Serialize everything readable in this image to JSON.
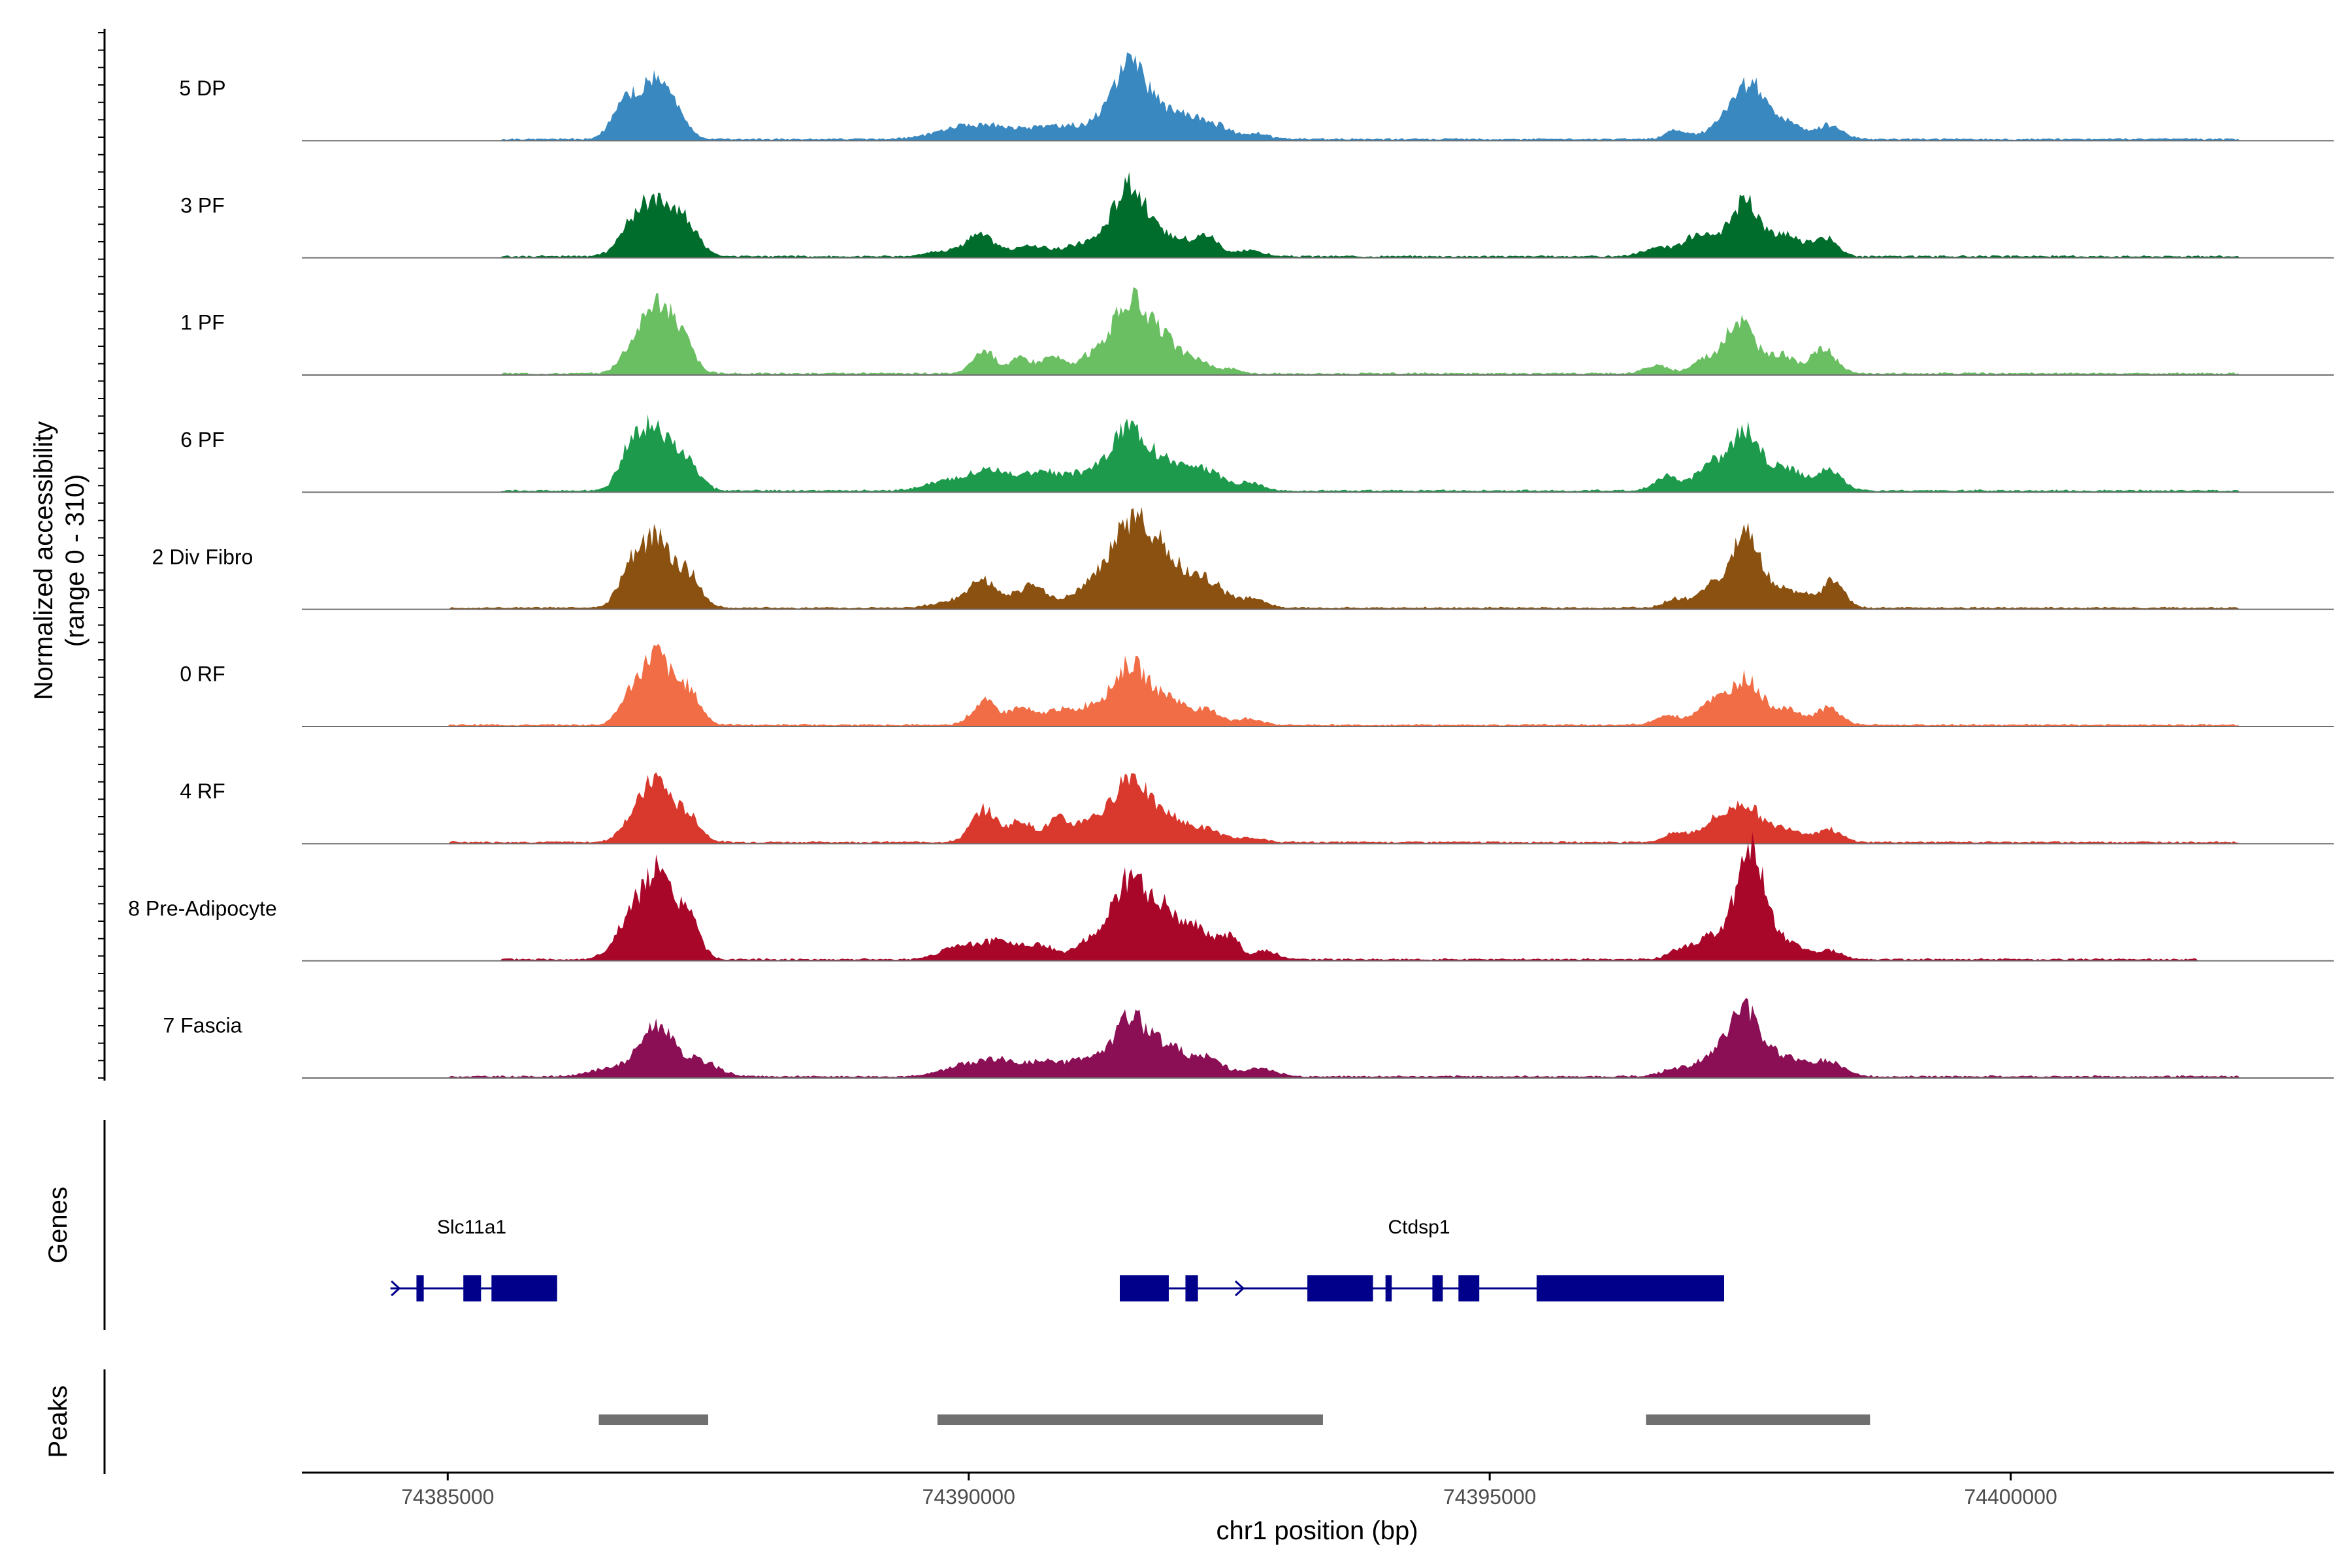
{
  "chart_data": {
    "type": "area",
    "title": "",
    "ylabel_line1": "Normalized accessibility",
    "ylabel_line2": "(range 0 - 310)",
    "y_range": [
      0,
      310
    ],
    "xlabel": "chr1 position (bp)",
    "xlim": [
      74383600,
      74403100
    ],
    "x_ticks": [
      {
        "value": 74385000,
        "label": "74385000"
      },
      {
        "value": 74390000,
        "label": "74390000"
      },
      {
        "value": 74395000,
        "label": "74395000"
      },
      {
        "value": 74400000,
        "label": "74400000"
      }
    ],
    "tracks": [
      {
        "name": "5 DP",
        "color": "#3a88c0",
        "peaks": [
          [
            74386700,
            0.45,
            120
          ],
          [
            74386950,
            0.6,
            120
          ],
          [
            74387150,
            0.45,
            120
          ],
          [
            74389900,
            0.12,
            250
          ],
          [
            74390300,
            0.14,
            250
          ],
          [
            74390800,
            0.13,
            180
          ],
          [
            74391200,
            0.15,
            220
          ],
          [
            74391550,
            0.9,
            170
          ],
          [
            74391900,
            0.3,
            160
          ],
          [
            74392150,
            0.22,
            110
          ],
          [
            74392400,
            0.17,
            110
          ],
          [
            74392750,
            0.08,
            120
          ],
          [
            74396800,
            0.12,
            100
          ],
          [
            74397200,
            0.18,
            120
          ],
          [
            74397500,
            0.72,
            150
          ],
          [
            74397850,
            0.22,
            130
          ],
          [
            74398250,
            0.18,
            130
          ]
        ],
        "fill_start": 74385500,
        "fill_end": 74402200
      },
      {
        "name": "3 PF",
        "color": "#006d2c",
        "peaks": [
          [
            74386800,
            0.45,
            140
          ],
          [
            74387050,
            0.62,
            140
          ],
          [
            74387300,
            0.35,
            120
          ],
          [
            74389700,
            0.06,
            120
          ],
          [
            74390100,
            0.28,
            150
          ],
          [
            74390600,
            0.14,
            150
          ],
          [
            74391100,
            0.16,
            180
          ],
          [
            74391550,
            0.92,
            170
          ],
          [
            74392000,
            0.22,
            160
          ],
          [
            74392300,
            0.24,
            110
          ],
          [
            74392700,
            0.08,
            120
          ],
          [
            74396600,
            0.1,
            140
          ],
          [
            74397000,
            0.26,
            150
          ],
          [
            74397450,
            0.72,
            150
          ],
          [
            74397850,
            0.28,
            120
          ],
          [
            74398200,
            0.26,
            120
          ]
        ],
        "fill_start": 74385500,
        "fill_end": 74402200
      },
      {
        "name": "1 PF",
        "color": "#6bbf63",
        "peaks": [
          [
            74386750,
            0.28,
            110
          ],
          [
            74387000,
            0.9,
            130
          ],
          [
            74387250,
            0.45,
            110
          ],
          [
            74390150,
            0.3,
            110
          ],
          [
            74390500,
            0.2,
            100
          ],
          [
            74390800,
            0.22,
            110
          ],
          [
            74391150,
            0.18,
            120
          ],
          [
            74391550,
            0.95,
            180
          ],
          [
            74391900,
            0.35,
            140
          ],
          [
            74392200,
            0.16,
            110
          ],
          [
            74392500,
            0.06,
            100
          ],
          [
            74396600,
            0.1,
            120
          ],
          [
            74397050,
            0.18,
            110
          ],
          [
            74397400,
            0.7,
            140
          ],
          [
            74397800,
            0.24,
            120
          ],
          [
            74398200,
            0.32,
            120
          ]
        ],
        "fill_start": 74385500,
        "fill_end": 74402200
      },
      {
        "name": "6 PF",
        "color": "#1d9a4c",
        "peaks": [
          [
            74386750,
            0.5,
            110
          ],
          [
            74387000,
            0.8,
            140
          ],
          [
            74387300,
            0.35,
            120
          ],
          [
            74389800,
            0.12,
            200
          ],
          [
            74390200,
            0.26,
            180
          ],
          [
            74390700,
            0.24,
            200
          ],
          [
            74391150,
            0.22,
            160
          ],
          [
            74391550,
            0.85,
            170
          ],
          [
            74391950,
            0.35,
            150
          ],
          [
            74392300,
            0.26,
            140
          ],
          [
            74392700,
            0.1,
            120
          ],
          [
            74396700,
            0.18,
            120
          ],
          [
            74397100,
            0.32,
            130
          ],
          [
            74397450,
            0.78,
            150
          ],
          [
            74397850,
            0.3,
            140
          ],
          [
            74398250,
            0.26,
            130
          ]
        ],
        "fill_start": 74385500,
        "fill_end": 74402200
      },
      {
        "name": "2 Div Fibro",
        "color": "#8b5110",
        "peaks": [
          [
            74386750,
            0.5,
            110
          ],
          [
            74387000,
            0.88,
            130
          ],
          [
            74387300,
            0.45,
            120
          ],
          [
            74389900,
            0.1,
            200
          ],
          [
            74390150,
            0.32,
            130
          ],
          [
            74390600,
            0.28,
            150
          ],
          [
            74391150,
            0.22,
            180
          ],
          [
            74391550,
            1.0,
            200
          ],
          [
            74391900,
            0.55,
            200
          ],
          [
            74392300,
            0.3,
            150
          ],
          [
            74392700,
            0.12,
            140
          ],
          [
            74396800,
            0.12,
            120
          ],
          [
            74397150,
            0.28,
            120
          ],
          [
            74397450,
            0.9,
            130
          ],
          [
            74397800,
            0.25,
            250
          ],
          [
            74398300,
            0.32,
            100
          ]
        ],
        "fill_start": 74385000,
        "fill_end": 74402200
      },
      {
        "name": "0 RF",
        "color": "#f16d45",
        "peaks": [
          [
            74386750,
            0.35,
            110
          ],
          [
            74387000,
            0.9,
            130
          ],
          [
            74387300,
            0.45,
            120
          ],
          [
            74390150,
            0.3,
            120
          ],
          [
            74390500,
            0.22,
            120
          ],
          [
            74390850,
            0.2,
            120
          ],
          [
            74391150,
            0.2,
            120
          ],
          [
            74391550,
            0.78,
            180
          ],
          [
            74391950,
            0.3,
            150
          ],
          [
            74392300,
            0.18,
            130
          ],
          [
            74392700,
            0.08,
            120
          ],
          [
            74396700,
            0.12,
            120
          ],
          [
            74397100,
            0.28,
            130
          ],
          [
            74397450,
            0.6,
            150
          ],
          [
            74397850,
            0.2,
            140
          ],
          [
            74398250,
            0.22,
            120
          ]
        ],
        "fill_start": 74385000,
        "fill_end": 74402200
      },
      {
        "name": "4 RF",
        "color": "#d9382d",
        "peaks": [
          [
            74386750,
            0.25,
            110
          ],
          [
            74387000,
            0.8,
            130
          ],
          [
            74387300,
            0.35,
            120
          ],
          [
            74390150,
            0.42,
            120
          ],
          [
            74390500,
            0.28,
            110
          ],
          [
            74390850,
            0.3,
            110
          ],
          [
            74391150,
            0.26,
            120
          ],
          [
            74391550,
            0.88,
            170
          ],
          [
            74391950,
            0.3,
            150
          ],
          [
            74392300,
            0.16,
            130
          ],
          [
            74392700,
            0.06,
            120
          ],
          [
            74396800,
            0.12,
            120
          ],
          [
            74397150,
            0.24,
            130
          ],
          [
            74397450,
            0.48,
            150
          ],
          [
            74397850,
            0.18,
            150
          ],
          [
            74398250,
            0.16,
            120
          ]
        ],
        "fill_start": 74385000,
        "fill_end": 74402200
      },
      {
        "name": "8 Pre-Adipocyte",
        "color": "#a8072a",
        "peaks": [
          [
            74386600,
            0.1,
            120
          ],
          [
            74386750,
            0.4,
            110
          ],
          [
            74387000,
            1.1,
            140
          ],
          [
            74387300,
            0.55,
            110
          ],
          [
            74389900,
            0.18,
            160
          ],
          [
            74390300,
            0.24,
            170
          ],
          [
            74390700,
            0.18,
            140
          ],
          [
            74391150,
            0.22,
            130
          ],
          [
            74391550,
            1.05,
            170
          ],
          [
            74391900,
            0.55,
            130
          ],
          [
            74392200,
            0.4,
            120
          ],
          [
            74392500,
            0.3,
            100
          ],
          [
            74392850,
            0.12,
            100
          ],
          [
            74396800,
            0.1,
            100
          ],
          [
            74397100,
            0.28,
            150
          ],
          [
            74397500,
            1.4,
            140
          ],
          [
            74397850,
            0.2,
            150
          ],
          [
            74398250,
            0.12,
            120
          ]
        ],
        "fill_start": 74385500,
        "fill_end": 74401800
      },
      {
        "name": "7 Fascia",
        "color": "#8b0f54",
        "peaks": [
          [
            74386600,
            0.12,
            200
          ],
          [
            74387000,
            0.65,
            150
          ],
          [
            74387400,
            0.2,
            180
          ],
          [
            74389900,
            0.12,
            180
          ],
          [
            74390250,
            0.2,
            180
          ],
          [
            74390700,
            0.18,
            200
          ],
          [
            74391150,
            0.22,
            180
          ],
          [
            74391550,
            0.75,
            150
          ],
          [
            74391900,
            0.4,
            160
          ],
          [
            74392300,
            0.24,
            150
          ],
          [
            74392800,
            0.1,
            150
          ],
          [
            74396800,
            0.1,
            150
          ],
          [
            74397150,
            0.22,
            150
          ],
          [
            74397450,
            0.88,
            150
          ],
          [
            74397850,
            0.25,
            150
          ],
          [
            74398250,
            0.2,
            150
          ]
        ],
        "fill_start": 74385000,
        "fill_end": 74402200
      }
    ],
    "genes_label": "Genes",
    "genes": [
      {
        "name": "Slc11a1",
        "start": 74384450,
        "end": 74386050,
        "strand": "+",
        "color": "#00008b",
        "exons": [
          [
            74384700,
            74384770
          ],
          [
            74385150,
            74385320
          ],
          [
            74385420,
            74386050
          ]
        ]
      },
      {
        "name": "Ctdsp1",
        "start": 74391450,
        "end": 74397250,
        "strand": "+",
        "color": "#00008b",
        "exons": [
          [
            74391450,
            74391920
          ],
          [
            74392080,
            74392200
          ],
          [
            74393250,
            74393880
          ],
          [
            74394000,
            74394060
          ],
          [
            74394450,
            74394550
          ],
          [
            74394700,
            74394900
          ],
          [
            74395450,
            74397250
          ]
        ]
      }
    ],
    "peaks_label": "Peaks",
    "peak_regions": [
      [
        74386450,
        74387500
      ],
      [
        74389700,
        74393400
      ],
      [
        74396500,
        74398650
      ]
    ],
    "peak_color": "#707070"
  }
}
